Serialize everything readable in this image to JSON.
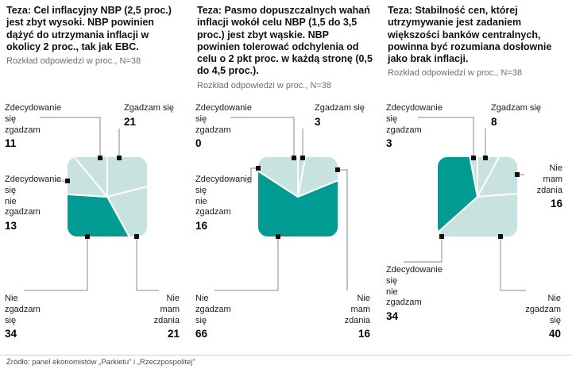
{
  "page": {
    "footer": "Źródło: panel ekonomistów „Parkietu” i „Rzeczpospolitej”"
  },
  "colors": {
    "light": "#c8e2e0",
    "dark": "#009c94",
    "marker": "#101010",
    "line": "#8a8a8a"
  },
  "chart_data": [
    {
      "type": "pie",
      "title": "Teza: Cel inflacyjny NBP (2,5 proc.) jest zbyt wysoki. NBP powinien dążyć do utrzymania inflacji w okolicy 2 proc., tak jak EBC.",
      "subtitle": "Rozkład odpowiedzi w proc., N=38",
      "sample_size": 38,
      "unit": "proc.",
      "order": "clockwise-from-top",
      "slices": [
        {
          "label": "Zgadzam się",
          "display": "Zgadzam się",
          "value": 21,
          "highlight": false
        },
        {
          "label": "Nie mam zdania",
          "display": "Nie\nmam\nzdania",
          "value": 21,
          "highlight": false
        },
        {
          "label": "Nie zgadzam się",
          "display": "Nie\nzgadzam\nsię",
          "value": 34,
          "highlight": true
        },
        {
          "label": "Zdecydowanie się nie zgadzam",
          "display": "Zdecydowanie\nsię\nnie\nzgadzam",
          "value": 13,
          "highlight": false
        },
        {
          "label": "Zdecydowanie się zgadzam",
          "display": "Zdecydowanie\nsię\nzgadzam",
          "value": 11,
          "highlight": false
        }
      ]
    },
    {
      "type": "pie",
      "title": "Teza: Pasmo dopuszczalnych wahań inflacji wokół celu NBP (1,5 do 3,5 proc.) jest zbyt wąskie. NBP powinien tolerować odchylenia od celu o 2 pkt proc. w każdą stronę (0,5 do 4,5 proc.).",
      "subtitle": "Rozkład odpowiedzi w proc., N=38",
      "sample_size": 38,
      "unit": "proc.",
      "order": "clockwise-from-top",
      "slices": [
        {
          "label": "Zgadzam się",
          "display": "Zgadzam się",
          "value": 3,
          "highlight": false
        },
        {
          "label": "Nie mam zdania",
          "display": "Nie\nmam\nzdania",
          "value": 16,
          "highlight": false
        },
        {
          "label": "Nie zgadzam się",
          "display": "Nie\nzgadzam\nsię",
          "value": 66,
          "highlight": true
        },
        {
          "label": "Zdecydowanie się nie zgadzam",
          "display": "Zdecydowanie\nsię\nnie\nzgadzam",
          "value": 16,
          "highlight": false
        },
        {
          "label": "Zdecydowanie się zgadzam",
          "display": "Zdecydowanie\nsię\nzgadzam",
          "value": 0,
          "highlight": false
        }
      ]
    },
    {
      "type": "pie",
      "title": "Teza: Stabilność cen, której utrzymywanie jest zadaniem większości banków centralnych, powinna być rozumiana dosłownie jako brak inflacji.",
      "subtitle": "Rozkład odpowiedzi w proc., N=38",
      "sample_size": 38,
      "unit": "proc.",
      "order": "clockwise-from-top",
      "slices": [
        {
          "label": "Zgadzam się",
          "display": "Zgadzam się",
          "value": 8,
          "highlight": false
        },
        {
          "label": "Nie mam zdania",
          "display": "Nie\nmam\nzdania",
          "value": 16,
          "highlight": false
        },
        {
          "label": "Nie zgadzam się",
          "display": "Nie\nzgadzam\nsię",
          "value": 40,
          "highlight": false
        },
        {
          "label": "Zdecydowanie się nie zgadzam",
          "display": "Zdecydowanie\nsię\nnie\nzgadzam",
          "value": 34,
          "highlight": true
        },
        {
          "label": "Zdecydowanie się zgadzam",
          "display": "Zdecydowanie\nsię\nzgadzam",
          "value": 3,
          "highlight": false
        }
      ]
    }
  ]
}
